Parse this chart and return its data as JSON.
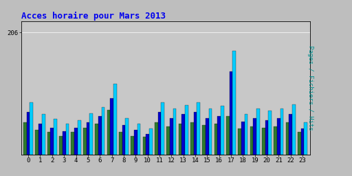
{
  "title": "Acces horaire pour Mars 2013",
  "ylabel": "Pages / Fichiers / Hits",
  "hours": [
    0,
    1,
    2,
    3,
    4,
    5,
    6,
    7,
    8,
    9,
    10,
    11,
    12,
    13,
    14,
    15,
    16,
    17,
    18,
    19,
    20,
    21,
    22,
    23
  ],
  "pages": [
    55,
    42,
    38,
    32,
    38,
    45,
    52,
    75,
    38,
    32,
    30,
    55,
    48,
    52,
    55,
    50,
    52,
    65,
    44,
    48,
    46,
    48,
    55,
    38
  ],
  "fichiers": [
    72,
    52,
    46,
    40,
    45,
    55,
    65,
    95,
    50,
    42,
    35,
    72,
    62,
    68,
    72,
    62,
    65,
    140,
    56,
    62,
    58,
    62,
    68,
    44
  ],
  "hits": [
    88,
    68,
    60,
    52,
    58,
    70,
    80,
    120,
    62,
    52,
    44,
    88,
    78,
    84,
    88,
    78,
    82,
    175,
    68,
    78,
    74,
    78,
    85,
    55
  ],
  "color_pages": "#2E7B2E",
  "color_fichiers": "#0000CC",
  "color_hits": "#00CCFF",
  "background_color": "#BEBEBE",
  "plot_bg_color": "#C8C8C8",
  "title_color": "#0000EE",
  "ylabel_color": "#009090",
  "ytick_value": 206,
  "ylim_max": 225,
  "bar_width": 0.27,
  "title_fontsize": 9,
  "ylabel_fontsize": 6.5,
  "tick_fontsize": 6.5
}
